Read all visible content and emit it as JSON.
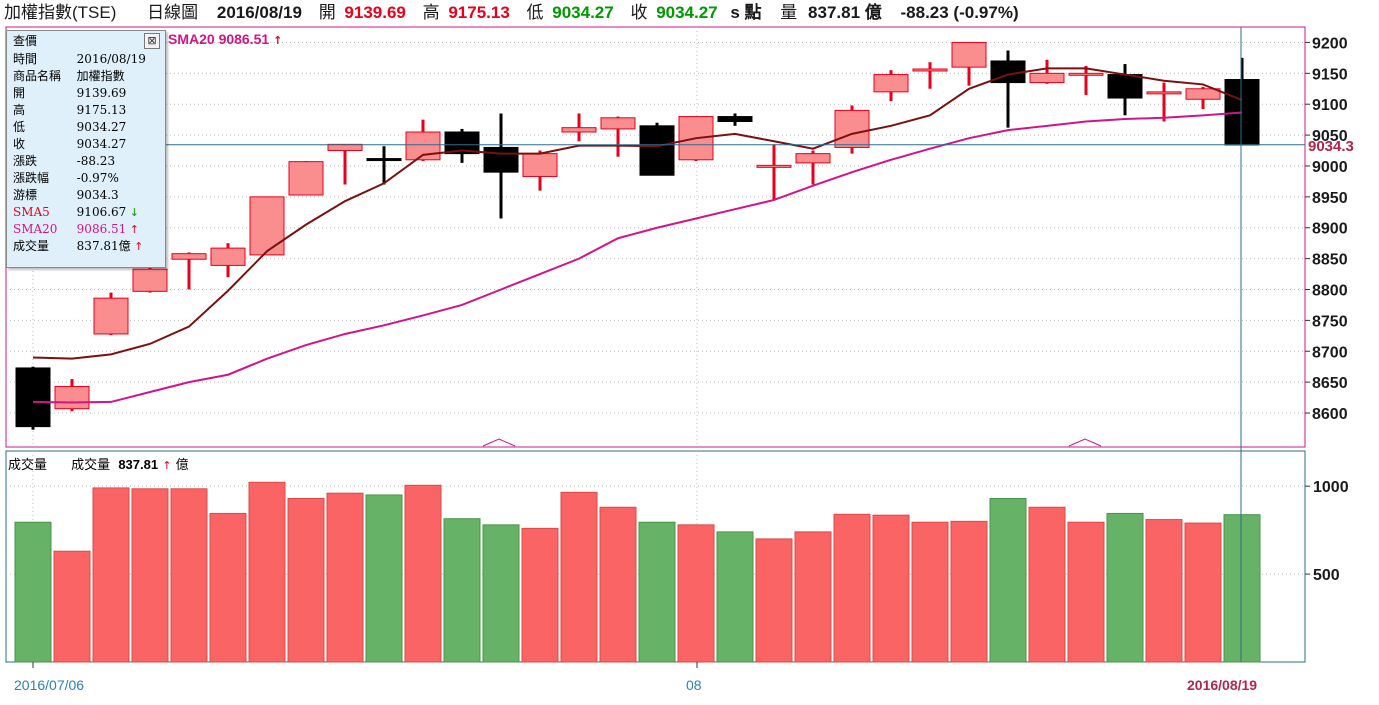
{
  "header": {
    "index_name": "加權指數(TSE)",
    "chart_type": "日線圖",
    "date": "2016/08/19",
    "open_label": "開",
    "open_value": "9139.69",
    "high_label": "高",
    "high_value": "9175.13",
    "low_label": "低",
    "low_value": "9034.27",
    "close_label": "收",
    "close_value": "9034.27",
    "unit_label": "s 點",
    "volume_label": "量",
    "volume_value": "837.81 億",
    "change": "-88.23 (-0.97%)"
  },
  "sma_legend": {
    "name": "SMA20",
    "value": "9086.51",
    "arrow": "↑"
  },
  "tooltip": {
    "title": "查價",
    "close_icon": "⊠",
    "rows": [
      {
        "label": "時間",
        "value": "2016/08/19"
      },
      {
        "label": "商品名稱",
        "value": "加權指數"
      },
      {
        "label": "開",
        "value": "9139.69"
      },
      {
        "label": "高",
        "value": "9175.13"
      },
      {
        "label": "低",
        "value": "9034.27"
      },
      {
        "label": "收",
        "value": "9034.27"
      },
      {
        "label": "漲跌",
        "value": "-88.23"
      },
      {
        "label": "漲跌幅",
        "value": "-0.97%"
      },
      {
        "label": "游標",
        "value": "9034.3"
      },
      {
        "label": "SMA5",
        "value": "9106.67",
        "arrow": "↓"
      },
      {
        "label": "SMA20",
        "value": "9086.51",
        "arrow": "↑"
      },
      {
        "label": "成交量",
        "value": "837.81億",
        "arrow": "↑"
      }
    ]
  },
  "volume_panel": {
    "title": "成交量",
    "label": "成交量",
    "value": "837.81",
    "arrow": "↑",
    "unit": "億"
  },
  "colors": {
    "up_fill": "#fa8d8d",
    "up_stroke": "#e8001c",
    "down_fill": "#000000",
    "sma5": "#7a1010",
    "sma20": "#d0148a",
    "vol_up": "#fb6464",
    "vol_down": "#66b266",
    "frame": "#d0148a",
    "cursor": "#2a6f8f"
  },
  "chart_data": {
    "type": "candlestick",
    "price_axis": {
      "ticks": [
        "9200",
        "9150",
        "9100",
        "9050",
        "9000",
        "8950",
        "8900",
        "8850",
        "8800",
        "8750",
        "8700",
        "8650",
        "8600"
      ],
      "ylim": [
        8545,
        9225
      ]
    },
    "volume_axis": {
      "ticks": [
        "1000",
        "500"
      ],
      "ylim": [
        0,
        1200
      ]
    },
    "x_labels": [
      "2016/07/06",
      "08",
      "2016/08/19"
    ],
    "cursor_label": "9034.3",
    "candles": [
      {
        "o": 8673,
        "h": 8675,
        "l": 8573,
        "c": 8578
      },
      {
        "o": 8607,
        "h": 8655,
        "l": 8603,
        "c": 8643
      },
      {
        "o": 8728,
        "h": 8795,
        "l": 8726,
        "c": 8786
      },
      {
        "o": 8797,
        "h": 8845,
        "l": 8795,
        "c": 8833
      },
      {
        "o": 8849,
        "h": 8860,
        "l": 8800,
        "c": 8858
      },
      {
        "o": 8839,
        "h": 8875,
        "l": 8820,
        "c": 8867
      },
      {
        "o": 8856,
        "h": 8950,
        "l": 8856,
        "c": 8950
      },
      {
        "o": 8953,
        "h": 9008,
        "l": 8953,
        "c": 9007
      },
      {
        "o": 9025,
        "h": 9035,
        "l": 8970,
        "c": 9035
      },
      {
        "o": 9012,
        "h": 9032,
        "l": 8970,
        "c": 9010
      },
      {
        "o": 9010,
        "h": 9075,
        "l": 9008,
        "c": 9055
      },
      {
        "o": 9055,
        "h": 9060,
        "l": 9005,
        "c": 9020
      },
      {
        "o": 9030,
        "h": 9085,
        "l": 8915,
        "c": 8990
      },
      {
        "o": 8983,
        "h": 9025,
        "l": 8960,
        "c": 9020
      },
      {
        "o": 9055,
        "h": 9085,
        "l": 9040,
        "c": 9062
      },
      {
        "o": 9060,
        "h": 9080,
        "l": 9015,
        "c": 9078
      },
      {
        "o": 9065,
        "h": 9070,
        "l": 8985,
        "c": 8985
      },
      {
        "o": 9010,
        "h": 9080,
        "l": 9008,
        "c": 9080
      },
      {
        "o": 9080,
        "h": 9085,
        "l": 9065,
        "c": 9072
      },
      {
        "o": 9000,
        "h": 9035,
        "l": 8945,
        "c": 9001
      },
      {
        "o": 9005,
        "h": 9025,
        "l": 8970,
        "c": 9020
      },
      {
        "o": 9030,
        "h": 9098,
        "l": 9020,
        "c": 9090
      },
      {
        "o": 9120,
        "h": 9155,
        "l": 9105,
        "c": 9148
      },
      {
        "o": 9155,
        "h": 9168,
        "l": 9125,
        "c": 9157
      },
      {
        "o": 9160,
        "h": 9200,
        "l": 9130,
        "c": 9200
      },
      {
        "o": 9170,
        "h": 9187,
        "l": 9062,
        "c": 9135
      },
      {
        "o": 9135,
        "h": 9172,
        "l": 9133,
        "c": 9150
      },
      {
        "o": 9150,
        "h": 9162,
        "l": 9115,
        "c": 9150
      },
      {
        "o": 9148,
        "h": 9165,
        "l": 9082,
        "c": 9110
      },
      {
        "o": 9120,
        "h": 9135,
        "l": 9072,
        "c": 9120
      },
      {
        "o": 9108,
        "h": 9128,
        "l": 9092,
        "c": 9125
      },
      {
        "o": 9140,
        "h": 9175,
        "l": 9034,
        "c": 9034
      }
    ],
    "sma5": [
      8690,
      8688,
      8695,
      8712,
      8740,
      8798,
      8862,
      8905,
      8943,
      8972,
      9018,
      9025,
      9020,
      9020,
      9033,
      9033,
      9032,
      9045,
      9052,
      9040,
      9028,
      9052,
      9065,
      9082,
      9125,
      9148,
      9158,
      9158,
      9148,
      9138,
      9132,
      9106.67
    ],
    "sma20": [
      8618,
      8617,
      8618,
      8634,
      8650,
      8662,
      8688,
      8710,
      8728,
      8742,
      8758,
      8775,
      8800,
      8825,
      8850,
      8883,
      8900,
      8915,
      8930,
      8945,
      8968,
      8990,
      9010,
      9028,
      9045,
      9058,
      9065,
      9072,
      9076,
      9078,
      9082,
      9086.51
    ],
    "volumes": [
      795,
      630,
      990,
      985,
      985,
      845,
      1022,
      930,
      960,
      950,
      1005,
      815,
      780,
      760,
      965,
      880,
      795,
      780,
      740,
      700,
      740,
      840,
      835,
      795,
      800,
      930,
      880,
      795,
      845,
      810,
      790,
      837.81
    ]
  }
}
